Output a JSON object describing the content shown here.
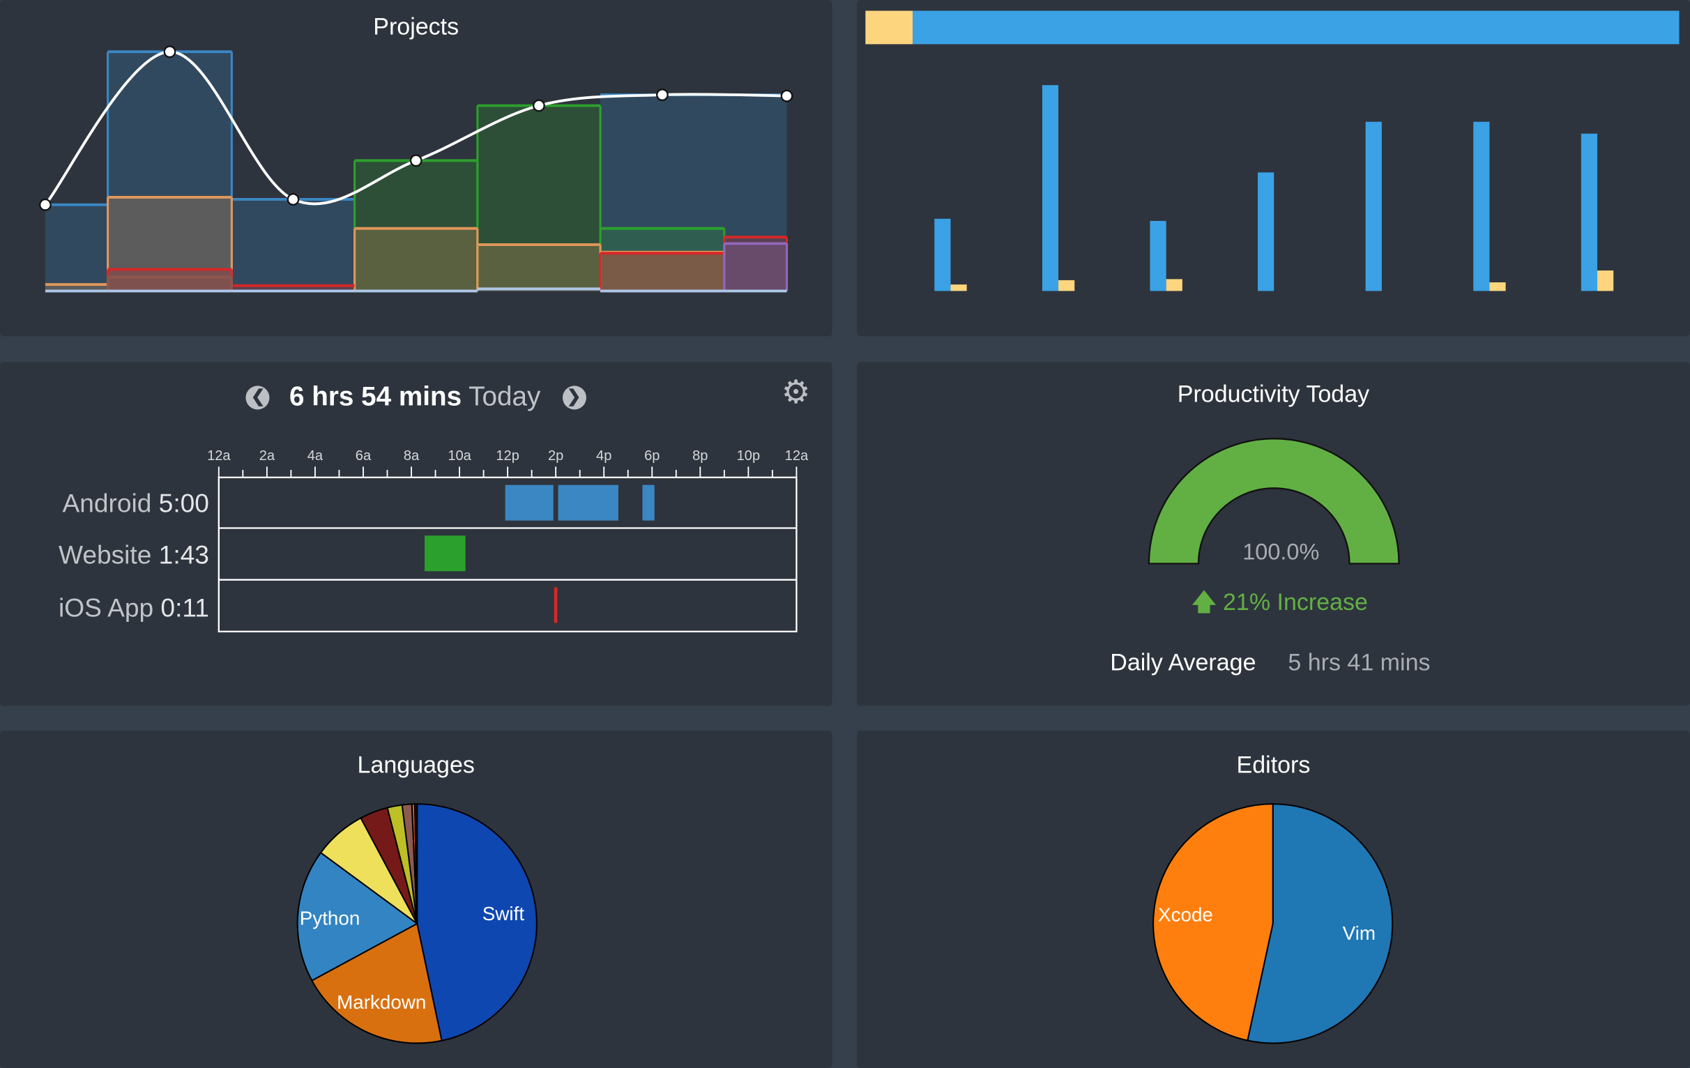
{
  "colors": {
    "panel": "#2e343d",
    "background": "#35404c",
    "accent_green": "#62b044",
    "blue": "#3ba2e6",
    "yellow": "#fdd57e"
  },
  "projects": {
    "title": "Projects",
    "chart_data": {
      "type": "area",
      "step": true,
      "columns": 7,
      "series": [
        {
          "color": "#3a87c4",
          "values": [
            80,
            222,
            85,
            null,
            null,
            182,
            182
          ]
        },
        {
          "color": "#2ca02c",
          "values": [
            null,
            null,
            null,
            121,
            172,
            58,
            null
          ]
        },
        {
          "color": "#e0975a",
          "values": [
            6,
            87,
            null,
            58,
            43,
            36,
            null
          ]
        },
        {
          "color": "#d62728",
          "values": [
            null,
            20,
            5,
            null,
            null,
            35,
            50
          ]
        },
        {
          "color": "#8c564b",
          "values": [
            null,
            13,
            null,
            null,
            null,
            null,
            null
          ]
        },
        {
          "color": "#9467bd",
          "values": [
            null,
            null,
            null,
            null,
            null,
            null,
            44
          ]
        },
        {
          "color": "#aec7e8",
          "values": [
            0,
            0,
            0,
            0,
            2,
            0,
            0
          ]
        }
      ],
      "total_curve": [
        80,
        222,
        85,
        121,
        172,
        182,
        181
      ]
    }
  },
  "weekly_bars": {
    "chart_data": {
      "type": "bar",
      "top_bar_fraction_yellow": 0.058,
      "series": [
        {
          "color": "#3ba2e6",
          "values": [
            67,
            191,
            65,
            110,
            157,
            157,
            146
          ]
        },
        {
          "color": "#fdd57e",
          "values": [
            6,
            10,
            11,
            0,
            0,
            8,
            19
          ]
        }
      ]
    }
  },
  "timeline": {
    "total": "6 hrs 54 mins",
    "day": "Today",
    "prev_icon": "chevron-circle-left-icon",
    "next_icon": "chevron-circle-right-icon",
    "settings_icon": "gear-icon",
    "ticks": [
      "12a",
      "2a",
      "4a",
      "6a",
      "8a",
      "10a",
      "12p",
      "2p",
      "4p",
      "6p",
      "8p",
      "10p",
      "12a"
    ],
    "chart_data": {
      "type": "timeline",
      "x_range_hours": [
        0,
        24
      ],
      "rows": [
        {
          "name": "Android",
          "time": "5:00",
          "color": "#3a87c4",
          "blocks": [
            [
              11.9,
              13.9
            ],
            [
              14.1,
              16.6
            ],
            [
              17.6,
              18.1
            ]
          ]
        },
        {
          "name": "Website",
          "time": "1:43",
          "color": "#2ca02c",
          "blocks": [
            [
              8.55,
              10.25
            ]
          ]
        },
        {
          "name": "iOS App",
          "time": "0:11",
          "color": "#d62728",
          "blocks": [
            [
              13.93,
              14.03
            ]
          ]
        }
      ]
    }
  },
  "productivity": {
    "title": "Productivity Today",
    "value": "100.0%",
    "gauge_fraction": 1.0,
    "change": "21% Increase",
    "daily_avg_label": "Daily Average",
    "daily_avg_value": "5 hrs 41 mins"
  },
  "languages": {
    "title": "Languages",
    "chart_data": {
      "type": "pie",
      "slices": [
        {
          "label": "Swift",
          "value": 46.7,
          "color": "#0e47b0"
        },
        {
          "label": "Markdown",
          "value": 20.4,
          "color": "#d9700f"
        },
        {
          "label": "Python",
          "value": 18.0,
          "color": "#3384c2"
        },
        {
          "label": "",
          "value": 7.1,
          "color": "#efe05c"
        },
        {
          "label": "",
          "value": 3.8,
          "color": "#761a19"
        },
        {
          "label": "",
          "value": 2.0,
          "color": "#bdbf25"
        },
        {
          "label": "",
          "value": 1.3,
          "color": "#8c5b50"
        },
        {
          "label": "",
          "value": 0.4,
          "color": "#e0582a"
        },
        {
          "label": "",
          "value": 0.3,
          "color": "#222222"
        }
      ]
    }
  },
  "editors": {
    "title": "Editors",
    "chart_data": {
      "type": "pie",
      "slices": [
        {
          "label": "Vim",
          "value": 53.4,
          "color": "#1f77b4"
        },
        {
          "label": "Xcode",
          "value": 46.6,
          "color": "#ff7f0e"
        }
      ]
    }
  }
}
